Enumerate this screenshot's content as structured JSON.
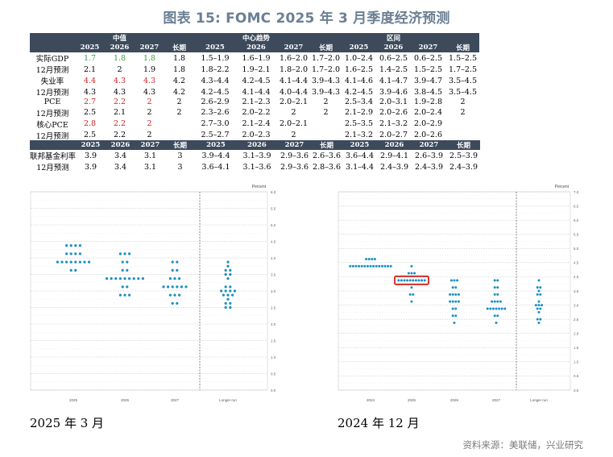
{
  "title": "图表 15: FOMC 2025 年 3 月季度经济预测",
  "table1": {
    "group_headers": [
      "中值",
      "中心趋势",
      "区间"
    ],
    "year_headers": [
      "2025",
      "2026",
      "2027",
      "长期",
      "2025",
      "2026",
      "2027",
      "长期",
      "2025",
      "2026",
      "2027",
      "长期"
    ],
    "rows": [
      {
        "label": "实际GDP",
        "cells": [
          "1.7",
          "1.8",
          "1.8",
          "1.8",
          "1.5–1.9",
          "1.6–1.9",
          "1.6–2.0",
          "1.7–2.0",
          "1.0–2.4",
          "0.6–2.5",
          "0.6–2.5",
          "1.5–2.5"
        ],
        "color": "green"
      },
      {
        "label": "12月预测",
        "cells": [
          "2.1",
          "2",
          "1.9",
          "1.8",
          "1.8–2.2",
          "1.9–2.1",
          "1.8–2.0",
          "1.7–2.0",
          "1.6–2.5",
          "1.4–2.5",
          "1.5–2.5",
          "1.7–2.5"
        ],
        "color": ""
      },
      {
        "label": "失业率",
        "cells": [
          "4.4",
          "4.3",
          "4.3",
          "4.2",
          "4.3–4.4",
          "4.2–4.5",
          "4.1–4.4",
          "3.9–4.3",
          "4.1–4.6",
          "4.1–4.7",
          "3.9–4.7",
          "3.5–4.5"
        ],
        "color": "red"
      },
      {
        "label": "12月预测",
        "cells": [
          "4.3",
          "4.3",
          "4.3",
          "4.2",
          "4.2–4.5",
          "4.1–4.4",
          "4.0–4.4",
          "3.9–4.3",
          "4.2–4.5",
          "3.9–4.6",
          "3.8–4.5",
          "3.5–4.5"
        ],
        "color": ""
      },
      {
        "label": "PCE",
        "cells": [
          "2.7",
          "2.2",
          "2",
          "2",
          "2.6–2.9",
          "2.1–2.3",
          "2.0–2.1",
          "2",
          "2.5–3.4",
          "2.0–3.1",
          "1.9–2.8",
          "2"
        ],
        "color": "red"
      },
      {
        "label": "12月预测",
        "cells": [
          "2.5",
          "2.1",
          "2",
          "2",
          "2.3–2.6",
          "2.0–2.2",
          "2",
          "2",
          "2.1–2.9",
          "2.0–2.6",
          "2.0–2.4",
          "2"
        ],
        "color": ""
      },
      {
        "label": "核心PCE",
        "cells": [
          "2.8",
          "2.2",
          "2",
          "",
          "2.7–3.0",
          "2.1–2.4",
          "2.0–2.1",
          "",
          "2.5–3.5",
          "2.1–3.2",
          "2.0–2.9",
          ""
        ],
        "color": "red"
      },
      {
        "label": "12月预测",
        "cells": [
          "2.5",
          "2.2",
          "2",
          "",
          "2.5–2.7",
          "2.0–2.3",
          "2",
          "",
          "2.1–3.2",
          "2.0–2.7",
          "2.0–2.6",
          ""
        ],
        "color": ""
      }
    ]
  },
  "table2": {
    "year_headers": [
      "2025",
      "2026",
      "2027",
      "长期",
      "2025",
      "2026",
      "2027",
      "长期",
      "2025",
      "2026",
      "2027",
      "长期"
    ],
    "rows": [
      {
        "label": "联邦基金利率",
        "cells": [
          "3.9",
          "3.4",
          "3.1",
          "3",
          "3.9–4.4",
          "3.1–3.9",
          "2.9–3.6",
          "2.6–3.6",
          "3.6–4.4",
          "2.9–4.1",
          "2.6–3.9",
          "2.5–3.9"
        ]
      },
      {
        "label": "12月预测",
        "cells": [
          "3.9",
          "3.4",
          "3.1",
          "3",
          "3.6–4.1",
          "3.1–3.6",
          "2.9–3.6",
          "2.8–3.6",
          "3.1–4.4",
          "2.4–3.9",
          "2.4–3.9",
          "2.4–3.9"
        ]
      }
    ]
  },
  "chart_data": [
    {
      "type": "scatter",
      "title": "",
      "ylabel": "Percent",
      "ylim": [
        0,
        6
      ],
      "yticks": [
        "0.0",
        "0.5",
        "1.0",
        "1.5",
        "2.0",
        "2.5",
        "3.0",
        "3.5",
        "4.0",
        "4.5",
        "5.0",
        "5.5",
        "6.0"
      ],
      "categories": [
        "2025",
        "2026",
        "2027",
        "Longer run"
      ],
      "dots": [
        [
          [
            4.375,
            4
          ],
          [
            4.125,
            4
          ],
          [
            3.875,
            8
          ],
          [
            3.625,
            2
          ]
        ],
        [
          [
            4.125,
            3
          ],
          [
            3.875,
            2
          ],
          [
            3.625,
            2
          ],
          [
            3.375,
            9
          ],
          [
            3.125,
            2
          ],
          [
            2.875,
            3
          ]
        ],
        [
          [
            3.875,
            2
          ],
          [
            3.625,
            2
          ],
          [
            3.375,
            3
          ],
          [
            3.125,
            6
          ],
          [
            2.875,
            3
          ],
          [
            2.625,
            2
          ]
        ],
        [
          [
            3.875,
            1
          ],
          [
            3.75,
            1
          ],
          [
            3.625,
            2
          ],
          [
            3.5,
            2
          ],
          [
            3.375,
            1
          ],
          [
            3.125,
            2
          ],
          [
            3.0,
            4
          ],
          [
            2.875,
            3
          ],
          [
            2.75,
            1
          ],
          [
            2.625,
            2
          ],
          [
            2.5,
            2
          ]
        ]
      ]
    },
    {
      "type": "scatter",
      "title": "",
      "ylabel": "Percent",
      "ylim": [
        0,
        7
      ],
      "yticks": [
        "0.0",
        "0.5",
        "1.0",
        "1.5",
        "2.0",
        "2.5",
        "3.0",
        "3.5",
        "4.0",
        "4.5",
        "5.0",
        "5.5",
        "6.0",
        "6.5",
        "7.0"
      ],
      "categories": [
        "2024",
        "2025",
        "2026",
        "2027",
        "Longer run"
      ],
      "highlight": {
        "category": "2025",
        "value": 3.875,
        "color": "#d22020"
      },
      "dots": [
        [
          [
            4.625,
            4
          ],
          [
            4.375,
            15
          ]
        ],
        [
          [
            4.375,
            1
          ],
          [
            4.125,
            3
          ],
          [
            3.875,
            10
          ],
          [
            3.625,
            1
          ],
          [
            3.375,
            2
          ],
          [
            3.125,
            1
          ]
        ],
        [
          [
            3.875,
            3
          ],
          [
            3.625,
            2
          ],
          [
            3.375,
            4
          ],
          [
            3.125,
            4
          ],
          [
            2.875,
            2
          ],
          [
            2.625,
            2
          ],
          [
            2.375,
            1
          ]
        ],
        [
          [
            3.875,
            2
          ],
          [
            3.625,
            2
          ],
          [
            3.375,
            2
          ],
          [
            3.125,
            4
          ],
          [
            2.875,
            7
          ],
          [
            2.625,
            2
          ],
          [
            2.375,
            1
          ]
        ],
        [
          [
            3.875,
            1
          ],
          [
            3.625,
            2
          ],
          [
            3.5,
            1
          ],
          [
            3.375,
            2
          ],
          [
            3.125,
            1
          ],
          [
            3.0,
            3
          ],
          [
            2.875,
            2
          ],
          [
            2.75,
            1
          ],
          [
            2.5,
            2
          ],
          [
            2.375,
            1
          ]
        ]
      ]
    }
  ],
  "captions": [
    "2025 年 3 月",
    "2024 年 12 月"
  ],
  "source": "资料来源：美联储，兴业研究",
  "colors": {
    "header_bg": "#3c4a5c",
    "dot": "#1a8fc2",
    "highlight": "#d22020",
    "green": "#3a9a3a",
    "red": "#d22020"
  }
}
